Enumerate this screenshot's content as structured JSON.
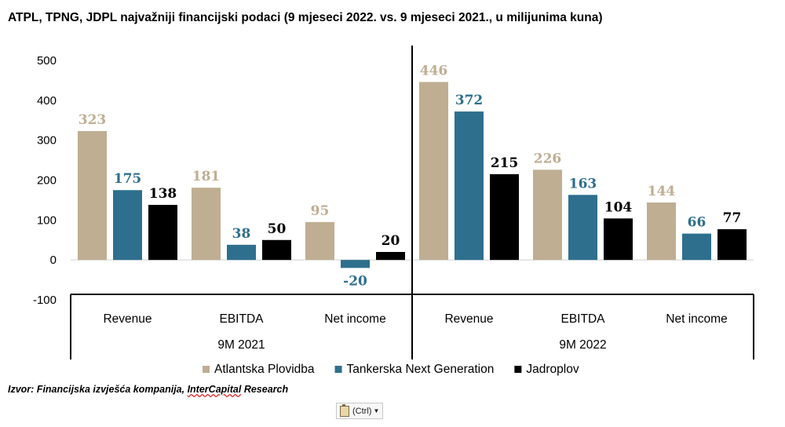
{
  "chart_data": {
    "type": "bar",
    "title": "ATPL, TPNG, JDPL najvažniji financijski podaci (9 mjeseci 2022. vs. 9 mjeseci 2021., u milijunima kuna)",
    "ylim": [
      -100,
      500
    ],
    "yticks": [
      -100,
      0,
      100,
      200,
      300,
      400,
      500
    ],
    "groups": [
      {
        "period": "9M 2021",
        "categories": [
          "Revenue",
          "EBITDA",
          "Net income"
        ]
      },
      {
        "period": "9M 2022",
        "categories": [
          "Revenue",
          "EBITDA",
          "Net income"
        ]
      }
    ],
    "series": [
      {
        "name": "Atlantska Plovidba",
        "color": "#bfae92",
        "values": [
          323,
          181,
          95,
          446,
          226,
          144
        ]
      },
      {
        "name": "Tankerska Next Generation",
        "color": "#2e6f8e",
        "values": [
          175,
          38,
          -20,
          372,
          163,
          66
        ]
      },
      {
        "name": "Jadroplov",
        "color": "#000000",
        "values": [
          138,
          50,
          20,
          215,
          104,
          77
        ]
      }
    ],
    "legend_position": "bottom",
    "grid": false
  },
  "footer": {
    "source_prefix": "Izvor: Financijska izvješća kompanija, ",
    "source_underlined": "InterCapital",
    "source_suffix": " Research"
  },
  "paste_options": {
    "label": "(Ctrl)"
  }
}
